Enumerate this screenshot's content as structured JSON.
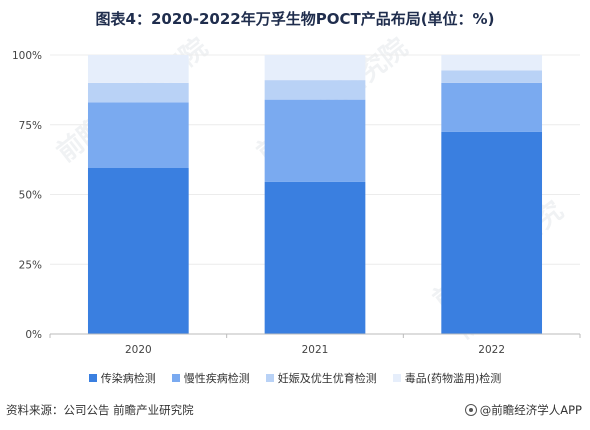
{
  "title": "图表4：2020-2022年万孚生物POCT产品布局(单位：%)",
  "source": "资料来源：公司公告 前瞻产业研究院",
  "brand": "@前瞻经济学人APP",
  "watermark_text": "前瞻产业研究院",
  "chart_data": {
    "type": "bar",
    "stacked": true,
    "categories": [
      "2020",
      "2021",
      "2022"
    ],
    "ylim": [
      0,
      100
    ],
    "yticks": [
      0,
      25,
      50,
      75,
      100
    ],
    "ytick_labels": [
      "0%",
      "25%",
      "50%",
      "75%",
      "100%"
    ],
    "series": [
      {
        "name": "传染病检测",
        "color": "#3a7fe0",
        "values": [
          59.5,
          54.5,
          72.5
        ]
      },
      {
        "name": "慢性疾病检测",
        "color": "#7aaaf0",
        "values": [
          23.5,
          29.5,
          17.5
        ]
      },
      {
        "name": "妊娠及优生优育检测",
        "color": "#b9d2f6",
        "values": [
          7,
          7,
          4.5
        ]
      },
      {
        "name": "毒品(药物滥用)检测",
        "color": "#e6eefb",
        "values": [
          10,
          9,
          5.5
        ]
      }
    ],
    "legend_position": "bottom"
  }
}
